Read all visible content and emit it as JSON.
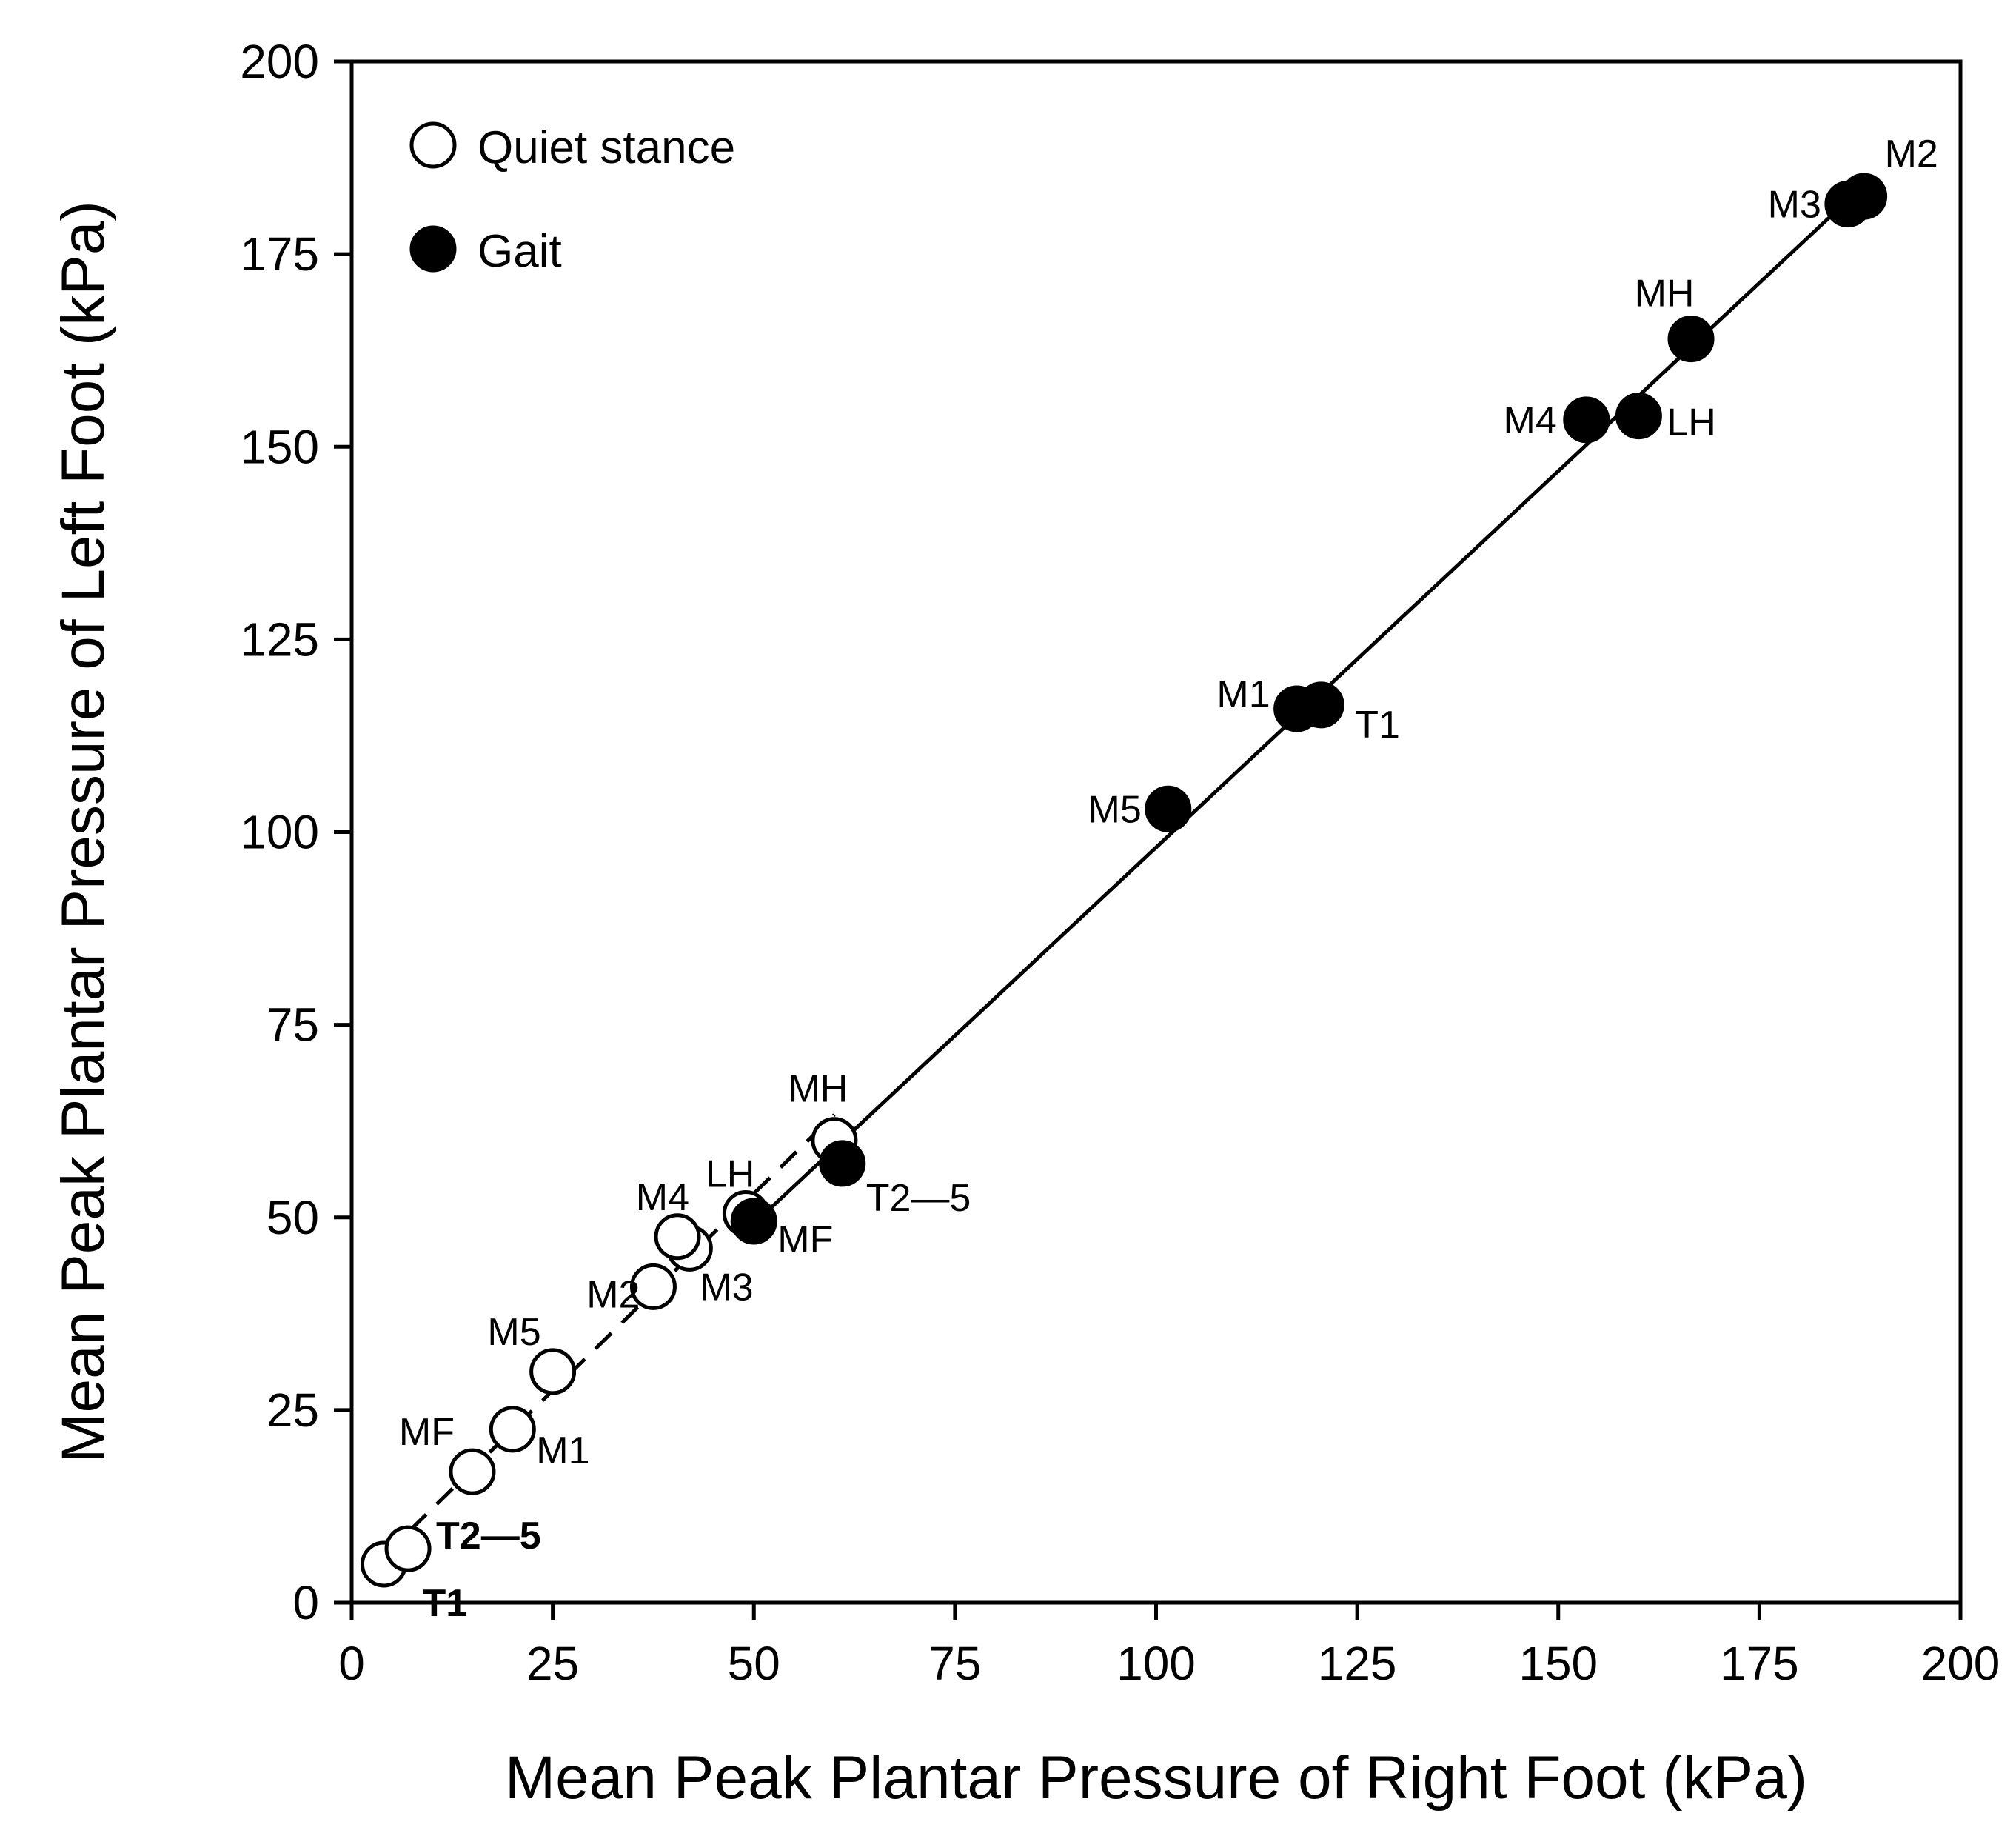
{
  "chart_data": {
    "type": "scatter",
    "xlabel": "Mean Peak Plantar Pressure of Right Foot (kPa)",
    "ylabel": "Mean Peak Plantar Pressure of Left Foot (kPa)",
    "xlim": [
      0,
      200
    ],
    "ylim": [
      0,
      200
    ],
    "xticks": [
      "0",
      "25",
      "50",
      "75",
      "100",
      "125",
      "150",
      "175",
      "200"
    ],
    "yticks": [
      "0",
      "25",
      "50",
      "75",
      "100",
      "125",
      "150",
      "175",
      "200"
    ],
    "grid": false,
    "legend_position": "top-left",
    "series": [
      {
        "name": "Quiet stance",
        "marker": "open-circle",
        "fit_line": "dashed",
        "points": [
          {
            "label": "T1",
            "x": 4,
            "y": 5
          },
          {
            "label": "T2—5",
            "x": 7,
            "y": 7
          },
          {
            "label": "MF",
            "x": 15,
            "y": 17
          },
          {
            "label": "M1",
            "x": 20,
            "y": 22.5
          },
          {
            "label": "M5",
            "x": 25,
            "y": 30
          },
          {
            "label": "M2",
            "x": 37.5,
            "y": 41
          },
          {
            "label": "M3",
            "x": 42,
            "y": 46
          },
          {
            "label": "M4",
            "x": 40.5,
            "y": 47.5
          },
          {
            "label": "LH",
            "x": 49,
            "y": 50.5
          },
          {
            "label": "MH",
            "x": 60,
            "y": 60
          }
        ]
      },
      {
        "name": "Gait",
        "marker": "filled-circle",
        "fit_line": "solid",
        "points": [
          {
            "label": "MF",
            "x": 50,
            "y": 49.5
          },
          {
            "label": "T2—5",
            "x": 61,
            "y": 57
          },
          {
            "label": "M5",
            "x": 101.5,
            "y": 103
          },
          {
            "label": "M1",
            "x": 117.5,
            "y": 116
          },
          {
            "label": "T1",
            "x": 120.5,
            "y": 116.5
          },
          {
            "label": "M4",
            "x": 153.5,
            "y": 153.5
          },
          {
            "label": "LH",
            "x": 160,
            "y": 154
          },
          {
            "label": "MH",
            "x": 166.5,
            "y": 164
          },
          {
            "label": "M3",
            "x": 186,
            "y": 181.5
          },
          {
            "label": "M2",
            "x": 188,
            "y": 182.5
          }
        ]
      }
    ]
  }
}
